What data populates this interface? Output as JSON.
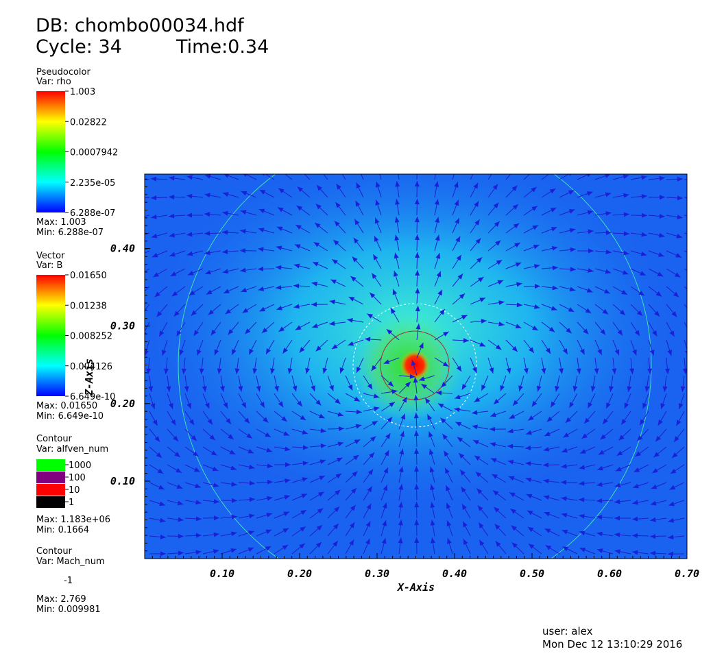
{
  "header": {
    "db": "DB: chombo00034.hdf",
    "cycle": "Cycle: 34",
    "time": "Time:0.34"
  },
  "legends": [
    {
      "plot": "Pseudocolor",
      "var": "Var: rho",
      "labels": [
        "1.003",
        "0.02822",
        "0.0007942",
        "2.235e-05",
        "6.288e-07"
      ],
      "max": "Max:  1.003",
      "min": "Min:  6.288e-07"
    },
    {
      "plot": "Vector",
      "var": "Var: B",
      "labels": [
        "0.01650",
        "0.01238",
        "0.008252",
        "0.004126",
        "6.649e-10"
      ],
      "max": "Max:  0.01650",
      "min": "Min:  6.649e-10"
    }
  ],
  "contours": [
    {
      "plot": "Contour",
      "var": "Var: alfven_num",
      "levels": [
        {
          "label": "1000",
          "color": "#00ff00"
        },
        {
          "label": "100",
          "color": "#800080"
        },
        {
          "label": "10",
          "color": "#ff0000"
        },
        {
          "label": "1",
          "color": "#000000"
        }
      ],
      "max": "Max:  1.183e+06",
      "min": "Min:  0.1664"
    },
    {
      "plot": "Contour",
      "var": "Var: Mach_num",
      "levels": [
        {
          "label": "-1"
        }
      ],
      "max": "Max:  2.769",
      "min": "Min:  0.009981"
    }
  ],
  "axes": {
    "x_label": "X-Axis",
    "y_label": "Z-Axis",
    "xlim": [
      0,
      0.7
    ],
    "ylim": [
      0,
      0.496
    ],
    "xticks": [
      {
        "value": 0.1,
        "label": "0.10"
      },
      {
        "value": 0.2,
        "label": "0.20"
      },
      {
        "value": 0.3,
        "label": "0.30"
      },
      {
        "value": 0.4,
        "label": "0.40"
      },
      {
        "value": 0.5,
        "label": "0.50"
      },
      {
        "value": 0.6,
        "label": "0.60"
      },
      {
        "value": 0.7,
        "label": "0.70"
      }
    ],
    "yticks": [
      {
        "value": 0.1,
        "label": "0.10"
      },
      {
        "value": 0.2,
        "label": "0.20"
      },
      {
        "value": 0.3,
        "label": "0.30"
      },
      {
        "value": 0.4,
        "label": "0.40"
      }
    ]
  },
  "footer": {
    "user": "user: alex",
    "date": "Mon Dec 12 13:10:29 2016"
  }
}
